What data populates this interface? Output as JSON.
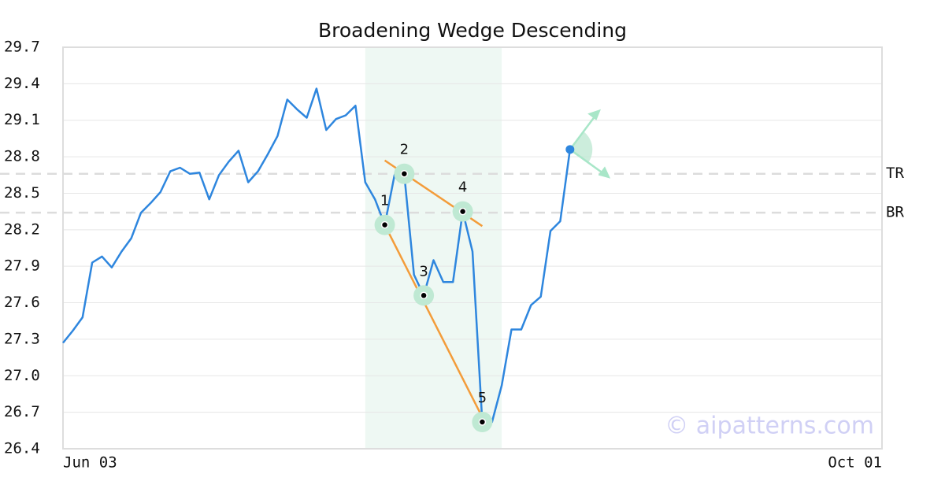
{
  "chart_data": {
    "type": "line",
    "title": "Broadening Wedge Descending",
    "categories": [
      "Jun 03",
      null,
      null,
      null,
      null,
      null,
      null,
      null,
      null,
      null,
      null,
      null,
      null,
      null,
      null,
      null,
      null,
      null,
      null,
      null,
      null,
      null,
      null,
      null,
      null,
      null,
      null,
      null,
      null,
      null,
      null,
      null,
      null,
      null,
      null,
      null,
      null,
      null,
      null,
      null,
      null,
      null,
      null,
      null,
      null,
      null,
      null,
      null,
      null,
      null,
      null,
      null,
      null,
      null,
      null,
      null,
      null,
      null,
      null,
      null,
      null,
      null,
      null,
      null,
      null,
      null,
      null,
      null,
      null,
      null,
      null,
      null,
      null,
      null,
      null,
      null,
      null,
      null,
      null,
      null,
      null,
      null,
      null,
      null,
      "Oct 01"
    ],
    "series": [
      {
        "color": "#2e86de",
        "values": [
          27.27,
          27.37,
          27.48,
          27.93,
          27.98,
          27.89,
          28.02,
          28.13,
          28.34,
          28.42,
          28.51,
          28.68,
          28.71,
          28.66,
          28.67,
          28.45,
          28.65,
          28.76,
          28.85,
          28.59,
          28.68,
          28.82,
          28.97,
          29.27,
          29.19,
          29.12,
          29.36,
          29.02,
          29.11,
          29.14,
          29.22,
          28.59,
          28.45,
          28.24,
          28.65,
          28.66,
          27.83,
          27.66,
          27.95,
          27.77,
          27.77,
          28.35,
          28.02,
          26.62,
          26.62,
          26.92,
          27.38,
          27.38,
          27.58,
          27.65,
          28.19,
          28.27,
          28.86,
          null,
          null,
          null,
          null,
          null,
          null,
          null,
          null,
          null,
          null,
          null,
          null,
          null,
          null,
          null,
          null,
          null,
          null,
          null,
          null,
          null,
          null,
          null,
          null,
          null,
          null,
          null,
          null,
          null,
          null,
          null,
          null
        ]
      }
    ],
    "ylim": [
      26.4,
      29.7
    ],
    "yticks": [
      26.4,
      26.7,
      {
        "value": 27,
        "label": "27.0"
      },
      27.3,
      27.6,
      27.9,
      28.2,
      28.5,
      28.8,
      29.1,
      29.4,
      29.7
    ],
    "grid": true,
    "highlight": [
      31,
      45
    ],
    "levels": [
      {
        "label": "TR",
        "value": 28.66
      },
      {
        "label": "BR",
        "value": 28.34
      }
    ],
    "pattern_points": [
      {
        "label": "1",
        "index": 33,
        "value": 28.24
      },
      {
        "label": "2",
        "index": 35,
        "value": 28.66
      },
      {
        "label": "3",
        "index": 37,
        "value": 27.66
      },
      {
        "label": "4",
        "index": 41,
        "value": 28.35
      },
      {
        "label": "5",
        "index": 43,
        "value": 26.62
      }
    ],
    "trend_lines": [
      {
        "start": {
          "index": 33,
          "value": 28.77
        },
        "end": {
          "index": 43,
          "value": 28.23
        },
        "color": "#f39c3a"
      },
      {
        "start": {
          "index": 33,
          "value": 28.24
        },
        "end": {
          "index": 43,
          "value": 26.66
        },
        "color": "#f39c3a"
      }
    ],
    "watermark": "© aipatterns.com"
  }
}
